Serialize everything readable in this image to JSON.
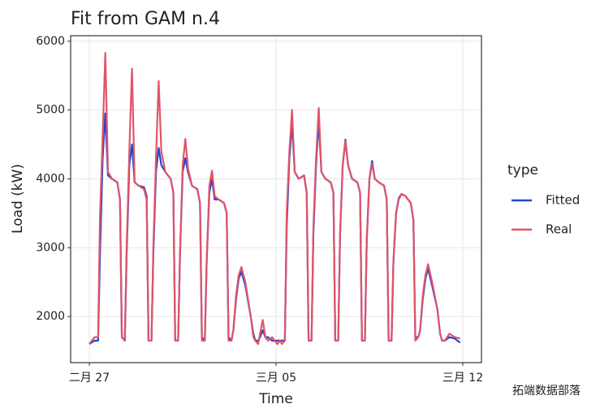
{
  "chart_data": {
    "type": "line",
    "title": "Fit from GAM n.4",
    "x_label": "Time",
    "y_label": "Load (kW)",
    "x": [
      0,
      0.2,
      0.33,
      0.4,
      0.5,
      0.6,
      0.7,
      0.85,
      1.05,
      1.15,
      1.22,
      1.33,
      1.4,
      1.5,
      1.6,
      1.7,
      1.85,
      2.05,
      2.15,
      2.22,
      2.33,
      2.4,
      2.5,
      2.6,
      2.7,
      2.85,
      3.05,
      3.15,
      3.22,
      3.33,
      3.4,
      3.5,
      3.6,
      3.7,
      3.85,
      4.05,
      4.15,
      4.22,
      4.33,
      4.4,
      4.5,
      4.6,
      4.7,
      4.85,
      5.05,
      5.15,
      5.22,
      5.33,
      5.4,
      5.5,
      5.6,
      5.7,
      5.85,
      6.05,
      6.15,
      6.22,
      6.33,
      6.4,
      6.5,
      6.6,
      6.7,
      6.85,
      7.05,
      7.15,
      7.22,
      7.33,
      7.4,
      7.5,
      7.6,
      7.7,
      7.85,
      8.05,
      8.15,
      8.22,
      8.33,
      8.4,
      8.5,
      8.6,
      8.7,
      8.85,
      9.05,
      9.15,
      9.22,
      9.33,
      9.4,
      9.5,
      9.6,
      9.7,
      9.85,
      10.05,
      10.15,
      10.22,
      10.33,
      10.4,
      10.5,
      10.6,
      10.7,
      10.85,
      11.05,
      11.15,
      11.22,
      11.33,
      11.4,
      11.5,
      11.6,
      11.7,
      11.85,
      12.05,
      12.15,
      12.22,
      12.33,
      12.4,
      12.5,
      12.6,
      12.7,
      12.85,
      13.05,
      13.15,
      13.22,
      13.33,
      13.5,
      13.7,
      13.9
    ],
    "series": [
      {
        "name": "Fitted",
        "color": "#2146d0",
        "values": [
          1600,
          1650,
          1650,
          2900,
          4300,
          4950,
          4050,
          4000,
          3950,
          3700,
          1700,
          1650,
          2900,
          4200,
          4500,
          3950,
          3900,
          3880,
          3750,
          1650,
          1650,
          2900,
          4100,
          4450,
          4200,
          4100,
          4000,
          3800,
          1650,
          1650,
          2900,
          4100,
          4300,
          4100,
          3900,
          3850,
          3650,
          1700,
          1650,
          2800,
          3800,
          4000,
          3700,
          3700,
          3650,
          3500,
          1700,
          1650,
          1800,
          2250,
          2550,
          2650,
          2450,
          2000,
          1750,
          1650,
          1650,
          1700,
          1800,
          1700,
          1700,
          1650,
          1650,
          1650,
          1650,
          1650,
          3300,
          4300,
          4800,
          4100,
          4000,
          4050,
          3800,
          1650,
          1650,
          3200,
          4200,
          4850,
          4100,
          4000,
          3950,
          3800,
          1650,
          1650,
          3200,
          4200,
          4570,
          4200,
          4000,
          3950,
          3800,
          1650,
          1650,
          3100,
          4000,
          4260,
          4000,
          3950,
          3900,
          3700,
          1650,
          1650,
          2800,
          3500,
          3720,
          3780,
          3750,
          3650,
          3400,
          1700,
          1700,
          1800,
          2250,
          2550,
          2700,
          2450,
          2100,
          1750,
          1650,
          1650,
          1700,
          1680,
          1620
        ]
      },
      {
        "name": "Real",
        "color": "#e05468",
        "values": [
          1600,
          1700,
          1700,
          3450,
          4600,
          5830,
          4100,
          4000,
          3950,
          3700,
          1700,
          1650,
          3000,
          4400,
          5600,
          3950,
          3900,
          3850,
          3700,
          1650,
          1650,
          3000,
          4300,
          5420,
          4400,
          4100,
          4000,
          3800,
          1650,
          1650,
          2900,
          4200,
          4580,
          4150,
          3900,
          3850,
          3650,
          1650,
          1650,
          2800,
          3900,
          4120,
          3750,
          3700,
          3650,
          3500,
          1650,
          1650,
          1800,
          2300,
          2600,
          2720,
          2500,
          2000,
          1700,
          1650,
          1600,
          1750,
          1950,
          1700,
          1650,
          1700,
          1600,
          1650,
          1600,
          1650,
          3500,
          4400,
          5000,
          4100,
          4000,
          4050,
          3800,
          1650,
          1650,
          3300,
          4300,
          5030,
          4100,
          4000,
          3950,
          3800,
          1650,
          1650,
          3200,
          4200,
          4550,
          4200,
          4000,
          3950,
          3800,
          1650,
          1650,
          3100,
          4000,
          4220,
          4000,
          3950,
          3900,
          3700,
          1650,
          1650,
          2800,
          3500,
          3700,
          3780,
          3750,
          3650,
          3400,
          1650,
          1700,
          1800,
          2300,
          2600,
          2760,
          2500,
          2100,
          1750,
          1650,
          1650,
          1750,
          1700,
          1680
        ]
      }
    ],
    "xlim": [
      -0.7,
      14.7
    ],
    "ylim": [
      1330,
      6080
    ],
    "xticks": [
      {
        "value": 0,
        "label": "二月 27"
      },
      {
        "value": 7,
        "label": "三月 05"
      },
      {
        "value": 14,
        "label": "三月 12"
      }
    ],
    "yticks": [
      2000,
      3000,
      4000,
      5000,
      6000
    ],
    "grid": true,
    "legend_title": "type",
    "legend": "right",
    "watermark": "拓端数据部落"
  }
}
